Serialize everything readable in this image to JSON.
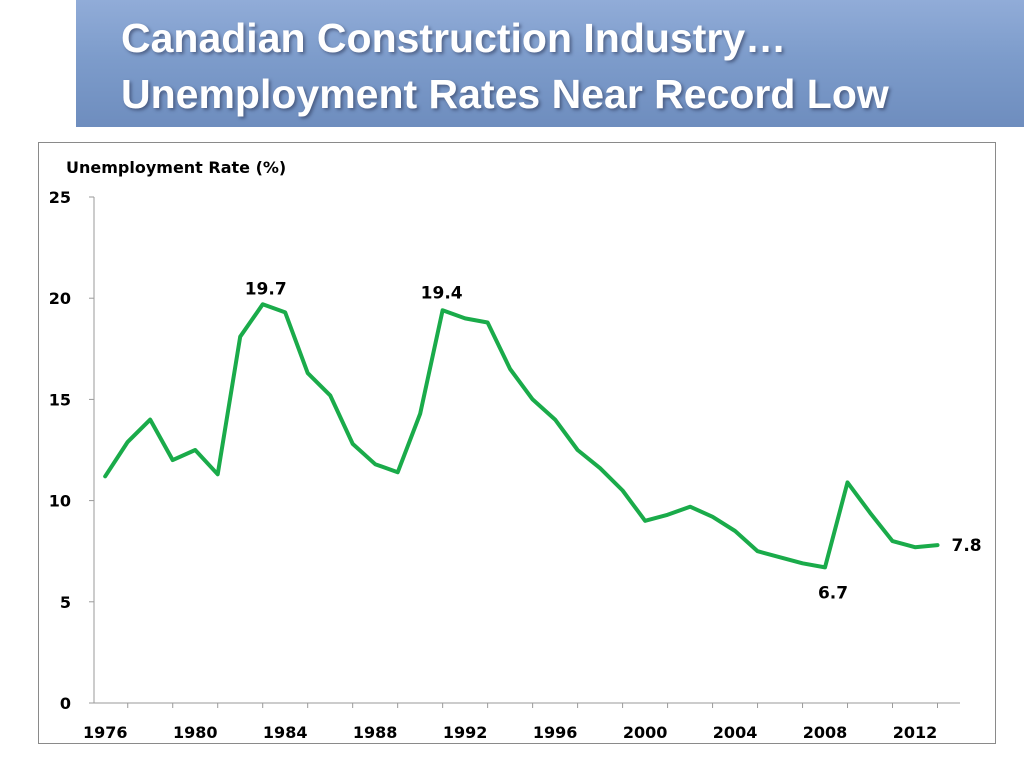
{
  "slide": {
    "title_line1": "Canadian Construction Industry…",
    "title_line2": "Unemployment Rates Near Record Low"
  },
  "colors": {
    "title_bar": "#7d9ccb",
    "line": "#1aab4a",
    "axis": "#9a9a9a"
  },
  "chart_data": {
    "type": "line",
    "ylabel": "Unemployment Rate (%)",
    "xlabel": "",
    "ylim": [
      0,
      25
    ],
    "yticks": [
      0,
      5,
      10,
      15,
      20,
      25
    ],
    "xticks": [
      1976,
      1980,
      1984,
      1988,
      1992,
      1996,
      2000,
      2004,
      2008,
      2012
    ],
    "grid": false,
    "legend": "none",
    "series": [
      {
        "x": [
          1976,
          1977,
          1978,
          1979,
          1980,
          1981,
          1982,
          1983,
          1984,
          1985,
          1986,
          1987,
          1988,
          1989,
          1990,
          1991,
          1992,
          1993,
          1994,
          1995,
          1996,
          1997,
          1998,
          1999,
          2000,
          2001,
          2002,
          2003,
          2004,
          2005,
          2006,
          2007,
          2008,
          2009,
          2010,
          2011,
          2012,
          2013
        ],
        "values": [
          11.2,
          12.9,
          14.0,
          12.0,
          12.5,
          11.3,
          18.1,
          19.7,
          19.3,
          16.3,
          15.2,
          12.8,
          11.8,
          11.4,
          14.3,
          19.4,
          19.0,
          18.8,
          16.5,
          15.0,
          14.0,
          12.5,
          11.6,
          10.5,
          9.0,
          9.3,
          9.7,
          9.2,
          8.5,
          7.5,
          7.2,
          6.9,
          6.7,
          10.9,
          9.4,
          8.0,
          7.7,
          7.8
        ]
      }
    ],
    "annotations": [
      {
        "x": 1983,
        "y": 19.7,
        "text": "19.7"
      },
      {
        "x": 1991,
        "y": 19.4,
        "text": "19.4"
      },
      {
        "x": 2008,
        "y": 6.7,
        "text": "6.7"
      },
      {
        "x": 2013,
        "y": 7.8,
        "text": "7.8"
      }
    ]
  }
}
